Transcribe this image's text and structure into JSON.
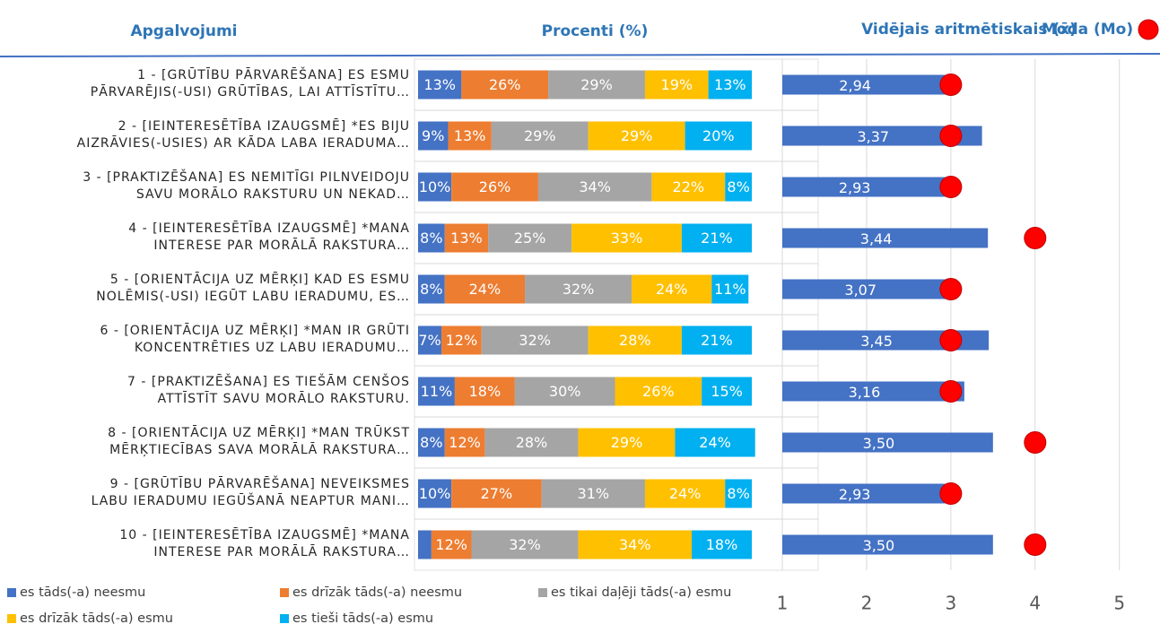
{
  "headers": {
    "statements": "Apgalvojumi",
    "percent": "Procenti (%)",
    "mean": "Vidējais aritmētiskais (x̄)",
    "mode": "Moda (Mo)"
  },
  "chart_data": [
    {
      "type": "stacked_bar_h",
      "categories": [
        "1 - [GRŪTĪBU PĀRVARĒŠANA] ES ESMU\nPĀRVARĒJIS(-USI) GRŪTĪBAS, LAI ATTĪSTĪTU…",
        "2 - [IEINTERESĒTĪBA IZAUGSMĒ] *ES BIJU\nAIZRĀVIES(-USIES) AR KĀDA LABA IERADUMA…",
        "3 - [PRAKTIZĒŠANA] ES NEMITĪGI PILNVEIDOJU\nSAVU MORĀLO RAKSTURU UN NEKAD…",
        "4 - [IEINTERESĒTĪBA IZAUGSMĒ] *MANA\nINTERESE PAR MORĀLĀ RAKSTURA…",
        "5 - [ORIENTĀCIJA UZ MĒRĶI] KAD ES ESMU\nNOLĒMIS(-USI) IEGŪT LABU IERADUMU, ES…",
        "6 - [ORIENTĀCIJA UZ MĒRĶI] *MAN IR GRŪTI\nKONCENTRĒTIES UZ LABU IERADUMU…",
        "7 - [PRAKTIZĒŠANA] ES TIEŠĀM CENŠOS\nATTĪSTĪT SAVU MORĀLO RAKSTURU.",
        "8 - [ORIENTĀCIJA UZ MĒRĶI] *MAN TRŪKST\nMĒRĶTIECĪBAS SAVA MORĀLĀ RAKSTURA…",
        "9 - [GRŪTĪBU PĀRVARĒŠANA] NEVEIKSMES\nLABU IERADUMU IEGŪŠANĀ NEAPTUR MANI…",
        "10 - [IEINTERESĒTĪBA IZAUGSMĒ] *MANA\nINTERESE PAR MORĀLĀ RAKSTURA…"
      ],
      "xlim": [
        0,
        100
      ],
      "series": [
        {
          "name": "es tāds(-a) neesmu",
          "color": "#4472c4",
          "values": [
            13,
            9,
            10,
            8,
            8,
            7,
            11,
            8,
            10,
            4
          ],
          "value_labels": [
            "13%",
            "9%",
            "10%",
            "8%",
            "8%",
            "7%",
            "11%",
            "8%",
            "10%",
            null
          ]
        },
        {
          "name": "es drīzāk tāds(-a) neesmu",
          "color": "#ed7d31",
          "values": [
            26,
            13,
            26,
            13,
            24,
            12,
            18,
            12,
            27,
            12
          ],
          "value_labels": [
            "26%",
            "13%",
            "26%",
            "13%",
            "24%",
            "12%",
            "18%",
            "12%",
            "27%",
            "12%"
          ]
        },
        {
          "name": "es tikai daļēji tāds(-a) esmu",
          "color": "#a5a5a5",
          "values": [
            29,
            29,
            34,
            25,
            32,
            32,
            30,
            28,
            31,
            32
          ],
          "value_labels": [
            "29%",
            "29%",
            "34%",
            "25%",
            "32%",
            "32%",
            "30%",
            "28%",
            "31%",
            "32%"
          ]
        },
        {
          "name": "es drīzāk tāds(-a) esmu",
          "color": "#ffc000",
          "values": [
            19,
            29,
            22,
            33,
            24,
            28,
            26,
            29,
            24,
            34
          ],
          "value_labels": [
            "19%",
            "29%",
            "22%",
            "33%",
            "24%",
            "28%",
            "26%",
            "29%",
            "24%",
            "34%"
          ]
        },
        {
          "name": "es tieši tāds(-a) esmu",
          "color": "#00b0f0",
          "values": [
            13,
            20,
            8,
            21,
            11,
            21,
            15,
            24,
            8,
            18
          ],
          "value_labels": [
            "13%",
            "20%",
            "8%",
            "21%",
            "11%",
            "21%",
            "15%",
            "24%",
            "8%",
            "18%"
          ]
        }
      ]
    },
    {
      "type": "bar_h_mode",
      "color": "#4472c4",
      "mode_color": "#ff0000",
      "values": [
        2.94,
        3.37,
        2.93,
        3.44,
        3.07,
        3.45,
        3.16,
        3.5,
        2.93,
        3.5
      ],
      "value_labels": [
        "2,94",
        "3,37",
        "2,93",
        "3,44",
        "3,07",
        "3,45",
        "3,16",
        "3,50",
        "2,93",
        "3,50"
      ],
      "mode_values": [
        3,
        3,
        3,
        4,
        3,
        3,
        3,
        4,
        3,
        4
      ],
      "xlim": [
        1,
        5.45
      ],
      "xticks": [
        1,
        2,
        3,
        4,
        5
      ],
      "grid": true
    }
  ]
}
